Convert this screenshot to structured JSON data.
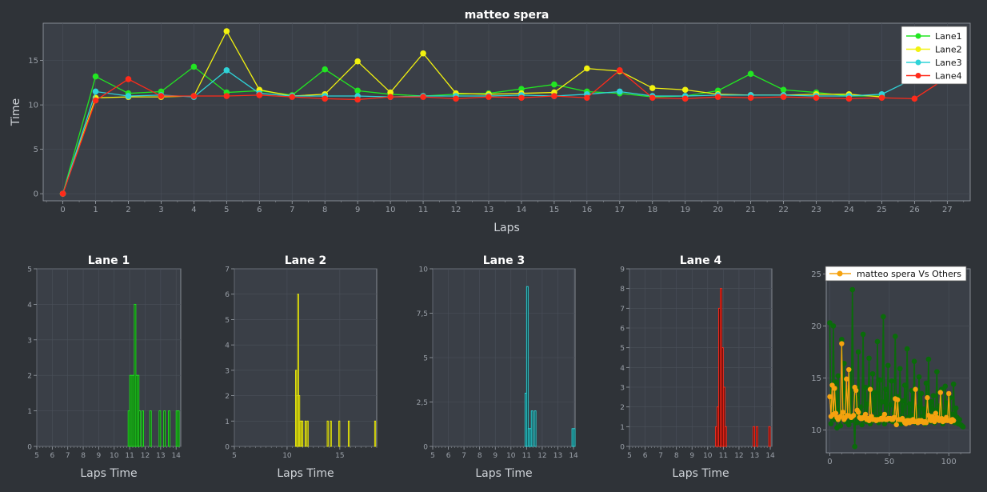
{
  "colors": {
    "background": "#2f3338",
    "plot_bg": "#3a3f47",
    "grid": "#4a505a",
    "axis": "#9aa0a8",
    "text": "#e6e6e6",
    "lane1": "#22e622",
    "lane2": "#f2f20f",
    "lane3": "#2fd3d8",
    "lane4": "#ff2a1a",
    "compare_others": "#0a6b0a",
    "compare_self": "#f5a20f",
    "hist1_fill": "#0d4d0d",
    "hist2_fill": "#3a3a08",
    "hist3_fill": "#0c4a4c",
    "hist4_fill": "#5a0a08"
  },
  "chart_data": [
    {
      "type": "line",
      "title": "matteo spera",
      "xlabel": "Laps",
      "ylabel": "Time",
      "xlim": [
        -0.6,
        27.7
      ],
      "ylim": [
        -0.8,
        19.2
      ],
      "xticks": [
        "0",
        "1",
        "2",
        "3",
        "4",
        "5",
        "6",
        "7",
        "8",
        "9",
        "10",
        "11",
        "12",
        "13",
        "14",
        "15",
        "16",
        "17",
        "18",
        "19",
        "20",
        "21",
        "22",
        "23",
        "24",
        "25",
        "26",
        "27"
      ],
      "yticks": [
        "0",
        "5",
        "10",
        "15"
      ],
      "grid": true,
      "legend_position": "top-right",
      "series": [
        {
          "name": "Lane1",
          "x": [
            0,
            1,
            2,
            3,
            4,
            5,
            6,
            7,
            8,
            9,
            10,
            11,
            12,
            13,
            14,
            15,
            16,
            17,
            18,
            19,
            20,
            21,
            22,
            23,
            24,
            25
          ],
          "y": [
            0,
            13.2,
            11.3,
            11.5,
            14.3,
            11.4,
            11.6,
            11.1,
            14.0,
            11.6,
            11.2,
            11.0,
            11.2,
            11.3,
            11.8,
            12.3,
            11.5,
            11.3,
            10.9,
            11.0,
            11.6,
            13.5,
            11.7,
            11.4,
            11.0,
            11.0
          ]
        },
        {
          "name": "Lane2",
          "x": [
            0,
            1,
            2,
            3,
            4,
            5,
            6,
            7,
            8,
            9,
            10,
            11,
            12,
            13,
            14,
            15,
            16,
            17,
            18,
            19,
            20,
            21,
            22,
            23,
            24,
            25
          ],
          "y": [
            0,
            10.8,
            10.9,
            10.9,
            11.0,
            18.3,
            11.7,
            11.0,
            11.2,
            14.9,
            11.4,
            15.8,
            11.3,
            11.2,
            11.3,
            11.4,
            14.1,
            13.8,
            11.9,
            11.7,
            11.2,
            11.1,
            11.1,
            11.2,
            11.2,
            10.9
          ]
        },
        {
          "name": "Lane3",
          "x": [
            0,
            1,
            2,
            3,
            4,
            5,
            6,
            7,
            8,
            9,
            10,
            11,
            12,
            13,
            14,
            15,
            16,
            17,
            18,
            19,
            20,
            21,
            22,
            23,
            24,
            25,
            26
          ],
          "y": [
            0,
            11.5,
            11.0,
            11.1,
            10.9,
            13.9,
            11.3,
            11.0,
            11.0,
            11.0,
            10.9,
            11.0,
            11.0,
            11.0,
            11.1,
            11.0,
            11.2,
            11.5,
            11.0,
            11.0,
            11.1,
            11.1,
            11.1,
            11.0,
            11.0,
            11.2,
            13.0
          ]
        },
        {
          "name": "Lane4",
          "x": [
            0,
            1,
            2,
            3,
            4,
            5,
            6,
            7,
            8,
            9,
            10,
            11,
            12,
            13,
            14,
            15,
            16,
            17,
            18,
            19,
            20,
            21,
            22,
            23,
            24,
            25,
            26,
            27
          ],
          "y": [
            0,
            10.5,
            12.9,
            11.0,
            11.0,
            11.0,
            11.1,
            10.9,
            10.7,
            10.6,
            10.9,
            10.9,
            10.7,
            10.9,
            10.8,
            11.0,
            10.8,
            13.9,
            10.8,
            10.7,
            10.9,
            10.8,
            10.9,
            10.8,
            10.7,
            10.8,
            10.7,
            13.1
          ]
        }
      ]
    },
    {
      "type": "bar",
      "title": "Lane 1",
      "xlabel": "Laps Time",
      "ylabel": "",
      "xlim": [
        5,
        14.3
      ],
      "ylim": [
        0,
        5
      ],
      "xticks": [
        "5",
        "6",
        "7",
        "8",
        "9",
        "10",
        "11",
        "12",
        "13",
        "14"
      ],
      "yticks": [
        "0",
        "1",
        "2",
        "3",
        "4",
        "5"
      ],
      "bin_width": 0.1,
      "bins": [
        [
          10.9,
          1
        ],
        [
          11.0,
          2
        ],
        [
          11.1,
          2
        ],
        [
          11.2,
          2
        ],
        [
          11.3,
          4
        ],
        [
          11.4,
          2
        ],
        [
          11.5,
          2
        ],
        [
          11.6,
          1
        ],
        [
          11.8,
          1
        ],
        [
          12.3,
          1
        ],
        [
          12.9,
          1
        ],
        [
          13.2,
          1
        ],
        [
          13.5,
          1
        ],
        [
          14.0,
          1
        ],
        [
          14.1,
          1
        ]
      ],
      "grid": true
    },
    {
      "type": "bar",
      "title": "Lane 2",
      "xlabel": "Laps Time",
      "ylabel": "",
      "xlim": [
        5,
        18.5
      ],
      "ylim": [
        0,
        7
      ],
      "xticks": [
        "5",
        "10",
        "15"
      ],
      "yticks": [
        "0",
        "1",
        "2",
        "3",
        "4",
        "5",
        "6",
        "7"
      ],
      "bin_width": 0.1,
      "bins": [
        [
          10.8,
          3
        ],
        [
          10.9,
          2
        ],
        [
          11.0,
          6
        ],
        [
          11.1,
          2
        ],
        [
          11.2,
          1
        ],
        [
          11.3,
          1
        ],
        [
          11.4,
          1
        ],
        [
          11.7,
          1
        ],
        [
          11.9,
          1
        ],
        [
          13.8,
          1
        ],
        [
          14.1,
          1
        ],
        [
          14.9,
          1
        ],
        [
          15.8,
          1
        ],
        [
          18.3,
          1
        ]
      ],
      "grid": true
    },
    {
      "type": "bar",
      "title": "Lane 3",
      "xlabel": "Laps Time",
      "ylabel": "",
      "xlim": [
        5,
        14.1
      ],
      "ylim": [
        0,
        10
      ],
      "xticks": [
        "5",
        "6",
        "7",
        "8",
        "9",
        "10",
        "11",
        "12",
        "13",
        "14"
      ],
      "yticks": [
        "0",
        "2,5",
        "5",
        "7,5",
        "10"
      ],
      "bin_width": 0.1,
      "bins": [
        [
          10.9,
          3
        ],
        [
          11.0,
          9
        ],
        [
          11.1,
          1
        ],
        [
          11.2,
          1
        ],
        [
          11.3,
          2
        ],
        [
          11.5,
          2
        ],
        [
          13.9,
          1
        ],
        [
          14.0,
          1
        ]
      ],
      "grid": true
    },
    {
      "type": "bar",
      "title": "Lane 4",
      "xlabel": "Laps Time",
      "ylabel": "",
      "xlim": [
        5,
        14.1
      ],
      "ylim": [
        0,
        9
      ],
      "xticks": [
        "5",
        "6",
        "7",
        "8",
        "9",
        "10",
        "11",
        "12",
        "13",
        "14"
      ],
      "yticks": [
        "0",
        "1",
        "2",
        "3",
        "4",
        "5",
        "6",
        "7",
        "8",
        "9"
      ],
      "bin_width": 0.1,
      "bins": [
        [
          10.5,
          1
        ],
        [
          10.6,
          2
        ],
        [
          10.7,
          7
        ],
        [
          10.8,
          8
        ],
        [
          10.9,
          5
        ],
        [
          11.0,
          3
        ],
        [
          11.1,
          1
        ],
        [
          12.9,
          1
        ],
        [
          13.1,
          1
        ],
        [
          13.9,
          1
        ]
      ],
      "grid": true
    },
    {
      "type": "scatter",
      "title": "",
      "xlabel": "",
      "ylabel": "",
      "xlim": [
        -3,
        118
      ],
      "ylim": [
        7.8,
        25.5
      ],
      "xticks": [
        "0",
        "50",
        "100"
      ],
      "yticks": [
        "10",
        "15",
        "20",
        "25"
      ],
      "legend_position": "top-right",
      "legend_label": "matteo spera Vs Others",
      "series": [
        {
          "name": "",
          "role": "others",
          "x": [
            0,
            1,
            2,
            3,
            4,
            5,
            6,
            7,
            8,
            9,
            10,
            11,
            12,
            13,
            14,
            15,
            16,
            17,
            18,
            19,
            20,
            21,
            22,
            23,
            24,
            25,
            26,
            27,
            28,
            29,
            30,
            31,
            32,
            33,
            34,
            35,
            36,
            37,
            38,
            39,
            40,
            41,
            42,
            43,
            44,
            45,
            46,
            47,
            48,
            49,
            50,
            51,
            52,
            53,
            54,
            55,
            56,
            57,
            58,
            59,
            60,
            61,
            62,
            63,
            64,
            65,
            66,
            67,
            68,
            69,
            70,
            71,
            72,
            73,
            74,
            75,
            76,
            77,
            78,
            79,
            80,
            81,
            82,
            83,
            84,
            85,
            86,
            87,
            88,
            89,
            90,
            91,
            92,
            93,
            94,
            95,
            96,
            97,
            98,
            99,
            100,
            101,
            102,
            103,
            104,
            105,
            106,
            107,
            108,
            109,
            110,
            111,
            112
          ],
          "y": [
            20.3,
            10.6,
            12.4,
            20.0,
            11.0,
            14.6,
            10.2,
            15.2,
            11.9,
            10.4,
            18.7,
            11.3,
            16.4,
            10.8,
            12.6,
            13.9,
            10.5,
            15.8,
            10.9,
            23.5,
            11.4,
            8.4,
            13.1,
            10.7,
            17.5,
            11.6,
            12.2,
            10.5,
            19.2,
            11.0,
            14.1,
            10.8,
            12.5,
            16.9,
            10.6,
            11.9,
            15.4,
            10.9,
            13.6,
            11.2,
            18.5,
            10.7,
            14.8,
            11.5,
            12.7,
            20.9,
            10.6,
            13.9,
            11.1,
            16.2,
            10.9,
            12.4,
            14.7,
            10.8,
            11.6,
            19.0,
            10.7,
            13.2,
            11.3,
            15.9,
            10.6,
            12.8,
            11.0,
            14.3,
            10.9,
            17.8,
            11.2,
            12.5,
            10.8,
            13.8,
            11.4,
            16.6,
            10.7,
            12.2,
            11.0,
            15.1,
            10.9,
            13.5,
            11.3,
            12.0,
            10.6,
            14.5,
            11.1,
            16.8,
            10.8,
            12.7,
            11.4,
            13.3,
            10.7,
            11.9,
            15.6,
            10.9,
            12.3,
            11.2,
            13.9,
            10.6,
            11.7,
            14.2,
            10.9,
            12.6,
            11.0,
            13.1,
            10.8,
            11.5,
            14.4,
            10.7,
            12.1,
            11.2,
            10.6,
            11.0,
            10.5,
            10.4,
            10.3
          ]
        },
        {
          "name": "matteo spera",
          "role": "self",
          "x": [
            0,
            1,
            2,
            3,
            4,
            5,
            6,
            7,
            8,
            9,
            10,
            11,
            12,
            13,
            14,
            15,
            16,
            17,
            18,
            19,
            20,
            21,
            22,
            23,
            24,
            25,
            26,
            27,
            28,
            29,
            30,
            31,
            32,
            33,
            34,
            35,
            36,
            37,
            38,
            39,
            40,
            41,
            42,
            43,
            44,
            45,
            46,
            47,
            48,
            49,
            50,
            51,
            52,
            53,
            54,
            55,
            56,
            57,
            58,
            59,
            60,
            61,
            62,
            63,
            64,
            65,
            66,
            67,
            68,
            69,
            70,
            71,
            72,
            73,
            74,
            75,
            76,
            77,
            78,
            79,
            80,
            81,
            82,
            83,
            84,
            85,
            86,
            87,
            88,
            89,
            90,
            91,
            92,
            93,
            94,
            95,
            96,
            97,
            98,
            99,
            100,
            101,
            102,
            103,
            104
          ],
          "y": [
            13.2,
            11.3,
            14.3,
            11.5,
            14.0,
            11.6,
            11.2,
            11.0,
            11.2,
            11.3,
            18.3,
            11.7,
            11.0,
            11.2,
            14.9,
            11.4,
            15.8,
            11.3,
            11.2,
            11.3,
            11.4,
            14.1,
            13.8,
            11.9,
            11.7,
            11.2,
            11.1,
            11.1,
            11.2,
            11.2,
            11.5,
            11.0,
            11.1,
            10.9,
            13.9,
            11.3,
            11.0,
            11.0,
            11.0,
            10.9,
            11.0,
            11.0,
            11.0,
            11.1,
            11.0,
            11.2,
            11.5,
            11.0,
            11.0,
            11.1,
            11.1,
            11.1,
            11.0,
            11.0,
            11.2,
            13.0,
            10.5,
            12.9,
            11.0,
            11.0,
            11.0,
            11.1,
            10.9,
            10.7,
            10.6,
            10.9,
            10.9,
            10.7,
            10.9,
            10.8,
            11.0,
            10.8,
            13.9,
            10.8,
            10.7,
            10.9,
            10.8,
            10.9,
            10.8,
            10.7,
            10.8,
            10.7,
            13.1,
            11.4,
            11.0,
            10.9,
            11.3,
            11.1,
            10.8,
            11.6,
            11.2,
            11.0,
            10.9,
            13.6,
            11.1,
            10.8,
            11.0,
            10.9,
            11.2,
            10.9,
            13.5,
            10.9,
            10.8,
            11.0,
            10.9
          ]
        }
      ]
    }
  ]
}
